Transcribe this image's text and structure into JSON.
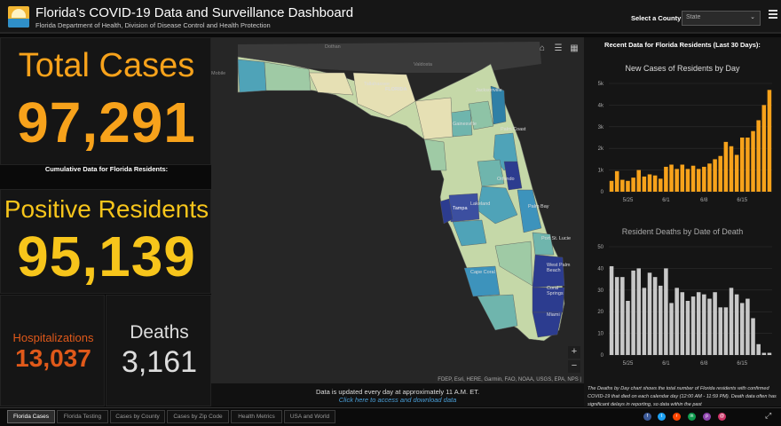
{
  "header": {
    "title": "Florida's COVID-19 Data and Surveillance Dashboard",
    "subtitle": "Florida Department of Health, Division of Disease Control and Health Protection",
    "select_label": "Select a County",
    "select_value": "State"
  },
  "summary": {
    "total_cases_label": "Total Cases",
    "total_cases_value": "97,291",
    "cumulative_note": "Cumulative Data for Florida Residents:",
    "positive_label": "Positive Residents",
    "positive_value": "95,139",
    "hosp_label": "Hospitalizations",
    "hosp_value": "13,037",
    "deaths_label": "Deaths",
    "deaths_value": "3,161"
  },
  "colors": {
    "total": "#f7a21b",
    "positive": "#f7c51b",
    "hospitalizations": "#e0591a",
    "bars_cases": "#f7a21b",
    "bars_deaths": "#c8c8c8"
  },
  "map": {
    "places": [
      "Dothan",
      "Valdosta",
      "Mobile",
      "Tallahassee",
      "FLORIDA",
      "Jacksonville",
      "Gainesville",
      "Palm Coast",
      "Orlando",
      "Tampa",
      "Lakeland",
      "Palm Bay",
      "Port St. Lucie",
      "West Palm Beach",
      "Cape Coral",
      "Coral Springs",
      "Miami"
    ],
    "attribution": "FDEP, Esri, HERE, Garmin, FAO, NOAA, USGS, EPA, NPS |",
    "zoom_in": "+",
    "zoom_out": "−",
    "update_note": "Data is updated every day at approximately 11 A.M. ET.",
    "download_link": "Click here to access and download data"
  },
  "right": {
    "recent_title": "Recent Data for Florida Residents (Last 30 Days):",
    "deaths_note": "The Deaths by Day chart shows the total number of Florida residents with confirmed COVID-19 that died on each calendar day (12:00 AM - 11:59 PM). Death data often has significant delays in reporting, so data within the past"
  },
  "chart_data": [
    {
      "type": "bar",
      "title": "New Cases of Residents by Day",
      "categories": [
        "5/22",
        "5/23",
        "5/24",
        "5/25",
        "5/26",
        "5/27",
        "5/28",
        "5/29",
        "5/30",
        "5/31",
        "6/1",
        "6/2",
        "6/3",
        "6/4",
        "6/5",
        "6/6",
        "6/7",
        "6/8",
        "6/9",
        "6/10",
        "6/11",
        "6/12",
        "6/13",
        "6/14",
        "6/15",
        "6/16",
        "6/17",
        "6/18",
        "6/19",
        "6/20"
      ],
      "values": [
        500,
        950,
        550,
        500,
        650,
        1000,
        700,
        800,
        750,
        600,
        1150,
        1250,
        1050,
        1250,
        1050,
        1200,
        1050,
        1150,
        1300,
        1500,
        1650,
        2300,
        2100,
        1700,
        2500,
        2500,
        2800,
        3300,
        4000,
        4700
      ],
      "y_ticks": [
        "0",
        "1k",
        "2k",
        "3k",
        "4k",
        "5k"
      ],
      "x_ticks": [
        "5/25",
        "6/1",
        "6/8",
        "6/15"
      ],
      "ylim": [
        0,
        5000
      ]
    },
    {
      "type": "bar",
      "title": "Resident Deaths by Date of Death",
      "categories": [
        "5/22",
        "5/23",
        "5/24",
        "5/25",
        "5/26",
        "5/27",
        "5/28",
        "5/29",
        "5/30",
        "5/31",
        "6/1",
        "6/2",
        "6/3",
        "6/4",
        "6/5",
        "6/6",
        "6/7",
        "6/8",
        "6/9",
        "6/10",
        "6/11",
        "6/12",
        "6/13",
        "6/14",
        "6/15",
        "6/16",
        "6/17",
        "6/18",
        "6/19",
        "6/20"
      ],
      "values": [
        41,
        36,
        36,
        25,
        39,
        40,
        31,
        38,
        36,
        32,
        40,
        24,
        31,
        29,
        25,
        27,
        29,
        28,
        26,
        29,
        22,
        22,
        31,
        28,
        24,
        26,
        17,
        5,
        1,
        1
      ],
      "y_ticks": [
        "0",
        "10",
        "20",
        "30",
        "40",
        "50"
      ],
      "x_ticks": [
        "5/25",
        "6/1",
        "6/8",
        "6/15"
      ],
      "ylim": [
        0,
        50
      ]
    }
  ],
  "tabs": [
    "Florida Cases",
    "Florida Testing",
    "Cases by County",
    "Cases by Zip Code",
    "Health Metrics",
    "USA and World"
  ],
  "active_tab": "Florida Cases",
  "social": [
    {
      "icon": "facebook-icon",
      "color": "#3b5998",
      "glyph": "f"
    },
    {
      "icon": "twitter-icon",
      "color": "#1da1f2",
      "glyph": "t"
    },
    {
      "icon": "reddit-icon",
      "color": "#ff4500",
      "glyph": "r"
    },
    {
      "icon": "linkedin-icon",
      "color": "#0e9a4e",
      "glyph": "in"
    },
    {
      "icon": "pinterest-icon",
      "color": "#8e44ad",
      "glyph": "p"
    },
    {
      "icon": "email-icon",
      "color": "#cc3366",
      "glyph": "@"
    }
  ]
}
